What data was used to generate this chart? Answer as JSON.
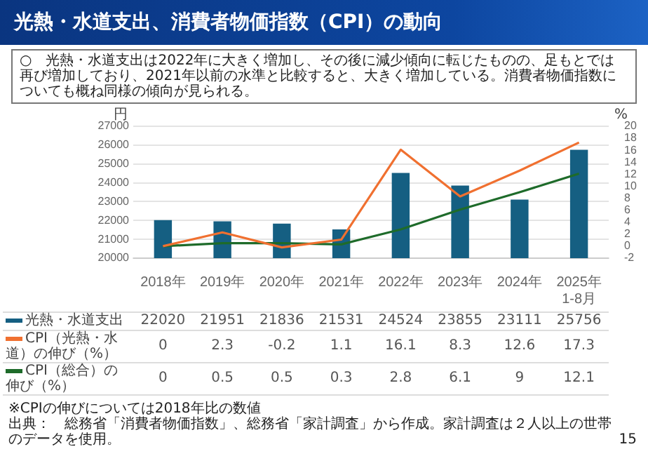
{
  "chart_data": {
    "type": "bar",
    "title": "光熱・水道支出、消費者物価指数（CPI）の動向",
    "subtitle": "○　光熱・水道支出は2022年に大きく増加し、その後に減少傾向に転じたものの、足もとでは再び増加しており、2021年以前の水準と比較すると、大きく増加している。消費者物価指数についても概ね同様の傾向が見られる。",
    "ylabel": "円",
    "y2label": "%",
    "categories": [
      "2018年",
      "2019年",
      "2020年",
      "2021年",
      "2022年",
      "2023年",
      "2024年",
      "2025年\n1-8月"
    ],
    "series": [
      {
        "name": "光熱・水道支出",
        "color": "#155f82",
        "values": [
          22020,
          21951,
          21836,
          21531,
          24524,
          23855,
          23111,
          25756
        ]
      },
      {
        "name": "CPI（光熱・水道）の伸び（%）",
        "type": "line",
        "axis": "y2",
        "color": "#f07030",
        "values": [
          0,
          2.3,
          -0.2,
          1.1,
          16.1,
          8.3,
          12.6,
          17.3
        ]
      },
      {
        "name": "CPI（総合）の伸び（%）",
        "type": "line",
        "axis": "y2",
        "color": "#1e6b2a",
        "values": [
          0,
          0.5,
          0.5,
          0.3,
          2.8,
          6.1,
          9,
          12.1
        ]
      }
    ],
    "ylim": [
      20000,
      27000
    ],
    "yticks": [
      20000,
      21000,
      22000,
      23000,
      24000,
      25000,
      26000,
      27000
    ],
    "y2lim": [
      -2,
      20
    ],
    "y2ticks": [
      -2,
      0,
      2,
      4,
      6,
      8,
      10,
      12,
      14,
      16,
      18,
      20
    ],
    "grid": "y",
    "legend": "bottom",
    "marker": "none",
    "line_style": "solid",
    "data_labels": true,
    "annotations": [
      "※CPIの伸びについては2018年比の数値",
      "出典：　総務省「消費者物価指数」、総務省「家計調査」から作成。家計調査は２人以上の世帯のデータを使用。",
      "15"
    ]
  }
}
